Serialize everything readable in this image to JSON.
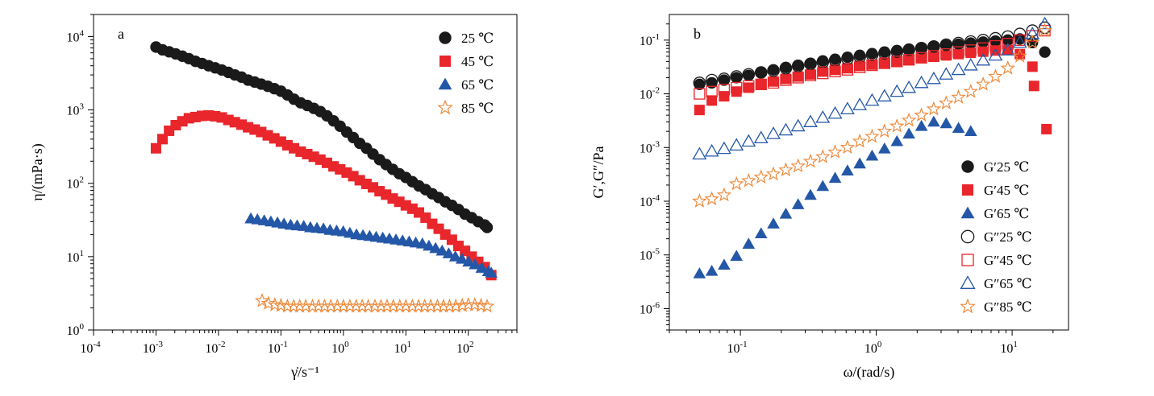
{
  "chart_data": [
    {
      "type": "scatter",
      "panel_label": "a",
      "xlabel": "γ̇/s⁻¹",
      "ylabel": "η/(mPa·s)",
      "x_scale": "log",
      "y_scale": "log",
      "xlim": [
        0.0001,
        600
      ],
      "ylim": [
        1,
        20000
      ],
      "x_ticks": [
        {
          "v": 0.0001,
          "base": "10",
          "exp": "-4"
        },
        {
          "v": 0.001,
          "base": "10",
          "exp": "-3"
        },
        {
          "v": 0.01,
          "base": "10",
          "exp": "-2"
        },
        {
          "v": 0.1,
          "base": "10",
          "exp": "-1"
        },
        {
          "v": 1,
          "base": "10",
          "exp": "0"
        },
        {
          "v": 10,
          "base": "10",
          "exp": "1"
        },
        {
          "v": 100,
          "base": "10",
          "exp": "2"
        }
      ],
      "y_ticks": [
        {
          "v": 1,
          "base": "10",
          "exp": "0"
        },
        {
          "v": 10,
          "base": "10",
          "exp": "1"
        },
        {
          "v": 100,
          "base": "10",
          "exp": "2"
        },
        {
          "v": 1000,
          "base": "10",
          "exp": "3"
        },
        {
          "v": 10000,
          "base": "10",
          "exp": "4"
        }
      ],
      "legend_position": "top-right",
      "series": [
        {
          "name": "25 ℃",
          "marker": "circle-filled",
          "color": "#1a1a1a",
          "x": [
            0.001,
            0.00127,
            0.00162,
            0.00207,
            0.00264,
            0.00336,
            0.00428,
            0.00546,
            0.00695,
            0.00886,
            0.0113,
            0.0144,
            0.0183,
            0.0234,
            0.0298,
            0.038,
            0.0483,
            0.0616,
            0.0785,
            0.1,
            0.127,
            0.162,
            0.207,
            0.264,
            0.336,
            0.428,
            0.546,
            0.695,
            0.886,
            1.13,
            1.44,
            1.83,
            2.34,
            2.98,
            3.8,
            4.83,
            6.16,
            7.85,
            10,
            12.7,
            16.2,
            20.7,
            26.4,
            33.6,
            42.8,
            54.6,
            69.5,
            88.6,
            113,
            144,
            183,
            200
          ],
          "y": [
            7200,
            6600,
            6200,
            5800,
            5400,
            5000,
            4600,
            4300,
            4000,
            3750,
            3500,
            3250,
            3000,
            2800,
            2550,
            2400,
            2250,
            2100,
            1950,
            1800,
            1600,
            1400,
            1250,
            1150,
            1050,
            950,
            830,
            710,
            600,
            500,
            420,
            350,
            300,
            250,
            210,
            180,
            155,
            135,
            120,
            105,
            92,
            82,
            72,
            64,
            56,
            50,
            44,
            38,
            34,
            30,
            27,
            25
          ]
        },
        {
          "name": "45 ℃",
          "marker": "square-filled",
          "color": "#e8262b",
          "x": [
            0.001,
            0.00127,
            0.00162,
            0.00207,
            0.00264,
            0.00336,
            0.00428,
            0.00546,
            0.00695,
            0.00886,
            0.0113,
            0.0144,
            0.0183,
            0.0234,
            0.0298,
            0.038,
            0.0483,
            0.0616,
            0.0785,
            0.1,
            0.127,
            0.162,
            0.207,
            0.264,
            0.336,
            0.428,
            0.546,
            0.695,
            0.886,
            1.13,
            1.44,
            1.83,
            2.34,
            2.98,
            3.8,
            4.83,
            6.16,
            7.85,
            10,
            12.7,
            16.2,
            20.7,
            26.4,
            33.6,
            42.8,
            54.6,
            69.5,
            88.6,
            113,
            144,
            183,
            233
          ],
          "y": [
            300,
            400,
            520,
            620,
            700,
            770,
            800,
            830,
            840,
            820,
            790,
            730,
            680,
            630,
            580,
            540,
            500,
            450,
            410,
            370,
            330,
            300,
            270,
            250,
            230,
            210,
            190,
            170,
            155,
            140,
            125,
            110,
            98,
            88,
            78,
            70,
            62,
            56,
            50,
            45,
            40,
            34,
            28,
            24,
            20,
            17,
            14,
            12,
            10,
            8.5,
            7.2,
            5.6
          ]
        },
        {
          "name": "65 ℃",
          "marker": "triangle-filled",
          "color": "#2457a7",
          "x": [
            0.033,
            0.042,
            0.054,
            0.069,
            0.088,
            0.112,
            0.143,
            0.182,
            0.232,
            0.296,
            0.377,
            0.48,
            0.612,
            0.78,
            0.995,
            1.27,
            1.62,
            2.06,
            2.63,
            3.35,
            4.27,
            5.45,
            6.95,
            8.86,
            11.3,
            14.4,
            18.4,
            23.4,
            29.9,
            38.1,
            48.6,
            62,
            79,
            101,
            128,
            164,
            209,
            233
          ],
          "y": [
            33,
            32,
            31,
            30,
            29,
            28,
            27,
            26.5,
            26,
            25,
            24.5,
            24,
            23,
            22.5,
            22,
            21,
            20,
            19.5,
            19,
            18.5,
            18,
            17.5,
            17,
            16.5,
            16,
            15.5,
            15,
            14,
            13,
            12,
            11,
            10,
            9.3,
            8.5,
            7.8,
            7,
            6.3,
            6
          ]
        },
        {
          "name": "85 ℃",
          "marker": "star-open",
          "color": "#ee8a3c",
          "x": [
            0.05,
            0.063,
            0.08,
            0.1,
            0.127,
            0.16,
            0.2,
            0.25,
            0.32,
            0.4,
            0.5,
            0.63,
            0.8,
            1,
            1.27,
            1.6,
            2,
            2.5,
            3.2,
            4,
            5,
            6.3,
            8,
            10,
            12.7,
            16,
            20,
            25,
            32,
            40,
            50,
            63,
            80,
            100,
            127,
            160,
            200
          ],
          "y": [
            2.5,
            2.3,
            2.2,
            2.15,
            2.1,
            2.1,
            2.1,
            2.1,
            2.1,
            2.1,
            2.1,
            2.1,
            2.1,
            2.1,
            2.1,
            2.1,
            2.1,
            2.1,
            2.1,
            2.1,
            2.1,
            2.1,
            2.1,
            2.1,
            2.1,
            2.1,
            2.1,
            2.1,
            2.1,
            2.1,
            2.1,
            2.1,
            2.15,
            2.2,
            2.2,
            2.15,
            2.1
          ]
        }
      ]
    },
    {
      "type": "scatter",
      "panel_label": "b",
      "xlabel": "ω/(rad/s)",
      "ylabel": "G′,G″/Pa",
      "x_scale": "log",
      "y_scale": "log",
      "xlim": [
        0.03,
        26
      ],
      "ylim": [
        4e-07,
        0.3
      ],
      "x_ticks": [
        {
          "v": 0.1,
          "base": "10",
          "exp": "-1"
        },
        {
          "v": 1,
          "base": "10",
          "exp": "0"
        },
        {
          "v": 10,
          "base": "10",
          "exp": "1"
        }
      ],
      "y_ticks": [
        {
          "v": 1e-06,
          "base": "10",
          "exp": "-6"
        },
        {
          "v": 1e-05,
          "base": "10",
          "exp": "-5"
        },
        {
          "v": 0.0001,
          "base": "10",
          "exp": "-4"
        },
        {
          "v": 0.001,
          "base": "10",
          "exp": "-3"
        },
        {
          "v": 0.01,
          "base": "10",
          "exp": "-2"
        },
        {
          "v": 0.1,
          "base": "10",
          "exp": "-1"
        }
      ],
      "legend_position": "bottom-right",
      "series": [
        {
          "name": "G′25 ℃",
          "marker": "circle-filled",
          "color": "#1a1a1a",
          "x": [
            0.05,
            0.0616,
            0.0759,
            0.0936,
            0.115,
            0.142,
            0.175,
            0.216,
            0.266,
            0.328,
            0.404,
            0.498,
            0.614,
            0.756,
            0.932,
            1.15,
            1.42,
            1.74,
            2.15,
            2.65,
            3.27,
            4.03,
            4.96,
            6.12,
            7.54,
            9.29,
            11.4,
            14.1,
            17.4
          ],
          "y": [
            0.015,
            0.016,
            0.018,
            0.02,
            0.022,
            0.025,
            0.028,
            0.031,
            0.034,
            0.037,
            0.041,
            0.044,
            0.048,
            0.052,
            0.056,
            0.06,
            0.064,
            0.068,
            0.072,
            0.076,
            0.08,
            0.084,
            0.088,
            0.092,
            0.096,
            0.1,
            0.105,
            0.09,
            0.06
          ]
        },
        {
          "name": "G′45 ℃",
          "marker": "square-filled",
          "color": "#e8262b",
          "x": [
            0.05,
            0.0616,
            0.0759,
            0.0936,
            0.115,
            0.142,
            0.175,
            0.216,
            0.266,
            0.328,
            0.404,
            0.498,
            0.614,
            0.756,
            0.932,
            1.15,
            1.42,
            1.74,
            2.15,
            2.65,
            3.27,
            4.03,
            4.96,
            6.12,
            7.54,
            9.29,
            11.4,
            14.1,
            14.5,
            17.9
          ],
          "y": [
            0.005,
            0.0075,
            0.009,
            0.011,
            0.013,
            0.015,
            0.017,
            0.019,
            0.021,
            0.023,
            0.026,
            0.028,
            0.03,
            0.033,
            0.035,
            0.038,
            0.04,
            0.043,
            0.046,
            0.049,
            0.052,
            0.055,
            0.058,
            0.061,
            0.064,
            0.066,
            0.055,
            0.032,
            0.014,
            0.0022
          ]
        },
        {
          "name": "G′65 ℃",
          "marker": "triangle-filled",
          "color": "#2457a7",
          "x": [
            0.05,
            0.0616,
            0.0759,
            0.0936,
            0.115,
            0.142,
            0.175,
            0.216,
            0.266,
            0.328,
            0.404,
            0.498,
            0.614,
            0.756,
            0.932,
            1.15,
            1.42,
            1.74,
            2.15,
            2.65,
            3.27,
            4.03,
            4.96
          ],
          "y": [
            4.5e-06,
            5e-06,
            6.5e-06,
            9.5e-06,
            1.6e-05,
            2.5e-05,
            3.8e-05,
            5.8e-05,
            8.7e-05,
            0.00013,
            0.00019,
            0.00027,
            0.00037,
            0.0005,
            0.0007,
            0.00095,
            0.0013,
            0.0018,
            0.0025,
            0.003,
            0.0028,
            0.0023,
            0.002
          ]
        },
        {
          "name": "G″25 ℃",
          "marker": "circle-open",
          "color": "#1a1a1a",
          "x": [
            0.05,
            0.0616,
            0.0759,
            0.0936,
            0.115,
            0.142,
            0.175,
            0.216,
            0.266,
            0.328,
            0.404,
            0.498,
            0.614,
            0.756,
            0.932,
            1.15,
            1.42,
            1.74,
            2.15,
            2.65,
            3.27,
            4.03,
            4.96,
            6.12,
            7.54,
            9.29,
            11.4,
            14.1,
            17.4
          ],
          "y": [
            0.016,
            0.018,
            0.019,
            0.021,
            0.023,
            0.025,
            0.027,
            0.03,
            0.033,
            0.036,
            0.039,
            0.042,
            0.045,
            0.049,
            0.053,
            0.057,
            0.061,
            0.066,
            0.071,
            0.076,
            0.082,
            0.088,
            0.094,
            0.1,
            0.108,
            0.116,
            0.13,
            0.15,
            0.17
          ]
        },
        {
          "name": "G″45 ℃",
          "marker": "square-open",
          "color": "#e8262b",
          "x": [
            0.05,
            0.0616,
            0.0759,
            0.0936,
            0.115,
            0.142,
            0.175,
            0.216,
            0.266,
            0.328,
            0.404,
            0.498,
            0.614,
            0.756,
            0.932,
            1.15,
            1.42,
            1.74,
            2.15,
            2.65,
            3.27,
            4.03,
            4.96,
            6.12,
            7.54,
            9.29,
            11.4,
            14.1,
            17.4
          ],
          "y": [
            0.01,
            0.011,
            0.012,
            0.013,
            0.014,
            0.015,
            0.016,
            0.018,
            0.02,
            0.022,
            0.024,
            0.026,
            0.028,
            0.031,
            0.034,
            0.037,
            0.04,
            0.043,
            0.047,
            0.051,
            0.055,
            0.06,
            0.065,
            0.071,
            0.078,
            0.086,
            0.1,
            0.12,
            0.15
          ]
        },
        {
          "name": "G″65 ℃",
          "marker": "triangle-open",
          "color": "#2457a7",
          "x": [
            0.05,
            0.0616,
            0.0759,
            0.0936,
            0.115,
            0.142,
            0.175,
            0.216,
            0.266,
            0.328,
            0.404,
            0.498,
            0.614,
            0.756,
            0.932,
            1.15,
            1.42,
            1.74,
            2.15,
            2.65,
            3.27,
            4.03,
            4.96,
            6.12,
            7.54,
            9.29,
            11.4,
            14.1,
            17.4
          ],
          "y": [
            0.00075,
            0.00085,
            0.00095,
            0.0011,
            0.0013,
            0.0015,
            0.0018,
            0.0021,
            0.0025,
            0.003,
            0.0036,
            0.0043,
            0.0052,
            0.0062,
            0.0075,
            0.009,
            0.011,
            0.013,
            0.016,
            0.019,
            0.023,
            0.028,
            0.034,
            0.042,
            0.052,
            0.065,
            0.09,
            0.13,
            0.2
          ]
        },
        {
          "name": "G″85 ℃",
          "marker": "star-open",
          "color": "#ee8a3c",
          "x": [
            0.05,
            0.0616,
            0.0759,
            0.0936,
            0.115,
            0.142,
            0.175,
            0.216,
            0.266,
            0.328,
            0.404,
            0.498,
            0.614,
            0.756,
            0.932,
            1.15,
            1.42,
            1.74,
            2.15,
            2.65,
            3.27,
            4.03,
            4.96,
            6.12,
            7.54,
            9.29,
            11.4,
            14.1,
            17.4
          ],
          "y": [
            0.0001,
            0.00011,
            0.00013,
            0.00021,
            0.00024,
            0.00028,
            0.00032,
            0.00038,
            0.00045,
            0.00055,
            0.00067,
            0.00082,
            0.001,
            0.0013,
            0.0016,
            0.002,
            0.0025,
            0.0032,
            0.004,
            0.0052,
            0.0067,
            0.0086,
            0.011,
            0.015,
            0.021,
            0.03,
            0.05,
            0.09,
            0.15
          ]
        }
      ]
    }
  ]
}
